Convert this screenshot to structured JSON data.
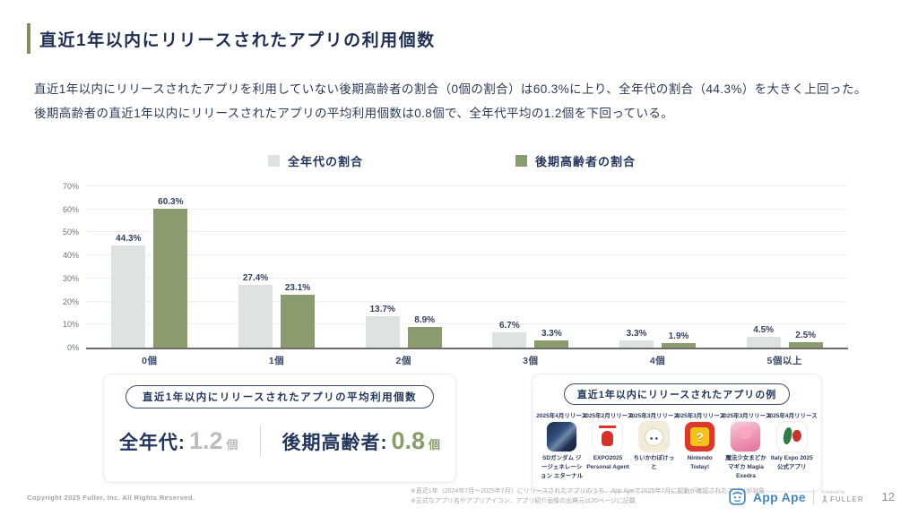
{
  "slide": {
    "title": "直近1年以内にリリースされたアプリの利用個数",
    "description_lines": [
      "直近1年以内にリリースされたアプリを利用していない後期高齢者の割合（0個の割合）は60.3%に上り、全年代の割合（44.3%）を大きく上回った。",
      "後期高齢者の直近1年以内にリリースされたアプリの平均利用個数は0.8個で、全年代平均の1.2個を下回っている。"
    ]
  },
  "chart_data": {
    "type": "bar",
    "categories": [
      "0個",
      "1個",
      "2個",
      "3個",
      "4個",
      "5個以上"
    ],
    "series": [
      {
        "name": "全年代の割合",
        "color": "#dde2e2",
        "values": [
          44.3,
          27.4,
          13.7,
          6.7,
          3.3,
          4.5
        ]
      },
      {
        "name": "後期高齢者の割合",
        "color": "#8a9c6e",
        "values": [
          60.3,
          23.1,
          8.9,
          3.3,
          1.9,
          2.5
        ]
      }
    ],
    "ylim": [
      0,
      70
    ],
    "ytick_step": 10,
    "ytick_suffix": "%",
    "value_suffix": "%",
    "grid": true,
    "legend_position": "top"
  },
  "average_box": {
    "badge": "直近1年以内にリリースされたアプリの平均利用個数",
    "items": [
      {
        "label": "全年代:",
        "value": "1.2",
        "unit": "個",
        "color": "#b8bdbd"
      },
      {
        "label": "後期高齢者:",
        "value": "0.8",
        "unit": "個",
        "color": "#8a9c6e"
      }
    ]
  },
  "example_box": {
    "badge": "直近1年以内にリリースされたアプリの例",
    "apps": [
      {
        "release": "2025年4月リリース",
        "name": "SDガンダム ジージェネレーション エターナル",
        "icon": "sd-gundam-app-icon",
        "kind": "gundam",
        "glyph": ""
      },
      {
        "release": "2025年2月リリース",
        "name": "EXPO2025 Personal Agent",
        "icon": "expo2025-app-icon",
        "kind": "expo",
        "glyph": ""
      },
      {
        "release": "2025年3月リリース",
        "name": "ちいかわぽけっと",
        "icon": "chiikawa-app-icon",
        "kind": "chiikawa",
        "glyph": ""
      },
      {
        "release": "2025年3月リリース",
        "name": "Nintendo Today!",
        "icon": "nintendo-today-app-icon",
        "kind": "nintendo",
        "glyph": "?"
      },
      {
        "release": "2025年3月リリース",
        "name": "魔法少女まどかマギカ Magia Exedra",
        "icon": "madoka-magica-app-icon",
        "kind": "madoka",
        "glyph": ""
      },
      {
        "release": "2025年4月リリース",
        "name": "Italy Expo 2025 公式アプリ",
        "icon": "italy-expo-app-icon",
        "kind": "italy",
        "glyph": ""
      }
    ]
  },
  "footer": {
    "copyright": "Copyright 2025 Fuller, Inc. All Rights Reserved.",
    "notes": [
      "※直近1年（2024年7月～2025年7月）にリリースされたアプリのうち、App Apeで2025年7月に起動が確認されたアプリが対象",
      "※正式なアプリ名やアプリアイコン、アプリ紹介画像の出典元は20ページに記載"
    ],
    "logo_text": "App Ape",
    "powered_by": "Powered by",
    "powered_by_brand": "FULLER",
    "page_number": "12"
  },
  "colors": {
    "accent_olive": "#8a9c6e",
    "bar_gray": "#dde2e2",
    "navy": "#24365c",
    "title_accent_bar": "#7e8e5e",
    "appape_blue": "#4589bd"
  }
}
